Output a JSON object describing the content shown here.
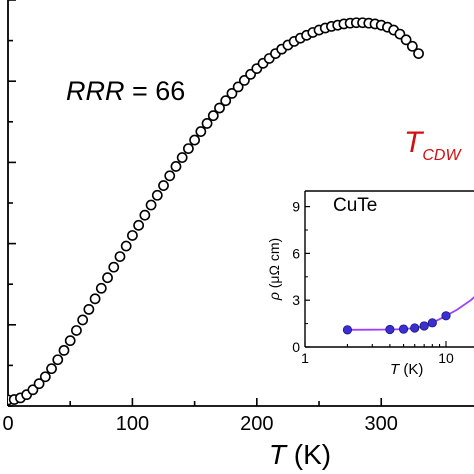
{
  "chart_data": [
    {
      "type": "scatter",
      "title": "",
      "annotation_rrr": {
        "prefix": "RRR",
        "suffix": " = 66"
      },
      "annotation_tcdw": {
        "main": "T",
        "sub": "CDW"
      },
      "xlabel": {
        "symbol": "T",
        "unit": " (K)"
      },
      "ylabel": "",
      "xlim": [
        0,
        340
      ],
      "ylim": [
        0,
        1.0
      ],
      "xticks": [
        0,
        100,
        200,
        300
      ],
      "grid": false,
      "legend": "none",
      "marker": "open-circle",
      "marker_color": "#000000",
      "x": [
        0,
        5,
        10,
        15,
        20,
        25,
        30,
        35,
        40,
        45,
        50,
        55,
        60,
        65,
        70,
        75,
        80,
        85,
        90,
        95,
        100,
        105,
        110,
        115,
        120,
        125,
        130,
        135,
        140,
        145,
        150,
        155,
        160,
        165,
        170,
        175,
        180,
        185,
        190,
        195,
        200,
        205,
        210,
        215,
        220,
        225,
        230,
        235,
        240,
        245,
        250,
        255,
        260,
        265,
        270,
        275,
        280,
        285,
        290,
        295,
        300,
        305,
        310,
        315,
        320,
        325,
        330
      ],
      "y": [
        0.015,
        0.016,
        0.02,
        0.028,
        0.04,
        0.055,
        0.072,
        0.092,
        0.114,
        0.137,
        0.161,
        0.186,
        0.212,
        0.238,
        0.264,
        0.29,
        0.316,
        0.342,
        0.368,
        0.394,
        0.42,
        0.445,
        0.47,
        0.495,
        0.519,
        0.543,
        0.567,
        0.59,
        0.612,
        0.634,
        0.655,
        0.676,
        0.696,
        0.715,
        0.734,
        0.752,
        0.77,
        0.786,
        0.802,
        0.817,
        0.831,
        0.844,
        0.856,
        0.868,
        0.879,
        0.889,
        0.898,
        0.906,
        0.913,
        0.92,
        0.926,
        0.931,
        0.935,
        0.938,
        0.941,
        0.943,
        0.944,
        0.944,
        0.943,
        0.941,
        0.938,
        0.933,
        0.926,
        0.916,
        0.902,
        0.886,
        0.868
      ]
    },
    {
      "type": "line",
      "panel": "inset",
      "title": "CuTe",
      "xlabel": {
        "symbol": "T",
        "unit": " (K)"
      },
      "ylabel": {
        "symbol": "ρ",
        "unit": " (μΩ cm)"
      },
      "xscale": "log",
      "xlim": [
        1,
        30
      ],
      "ylim": [
        0,
        10
      ],
      "xticks": [
        1,
        10
      ],
      "yticks": [
        0,
        3,
        6,
        9
      ],
      "grid": false,
      "marker_color": "#3a2fd0",
      "line_color": "#a040ff",
      "x": [
        2,
        4,
        5,
        6,
        7,
        8,
        10
      ],
      "y": [
        1.1,
        1.12,
        1.15,
        1.22,
        1.35,
        1.55,
        2.0
      ],
      "fit_x": [
        2,
        3,
        4,
        5,
        6,
        7,
        8,
        9,
        10,
        12,
        15,
        20,
        30
      ],
      "fit_y": [
        1.1,
        1.11,
        1.12,
        1.15,
        1.22,
        1.35,
        1.55,
        1.78,
        2.0,
        2.4,
        3.0,
        4.0,
        6.0
      ]
    }
  ]
}
